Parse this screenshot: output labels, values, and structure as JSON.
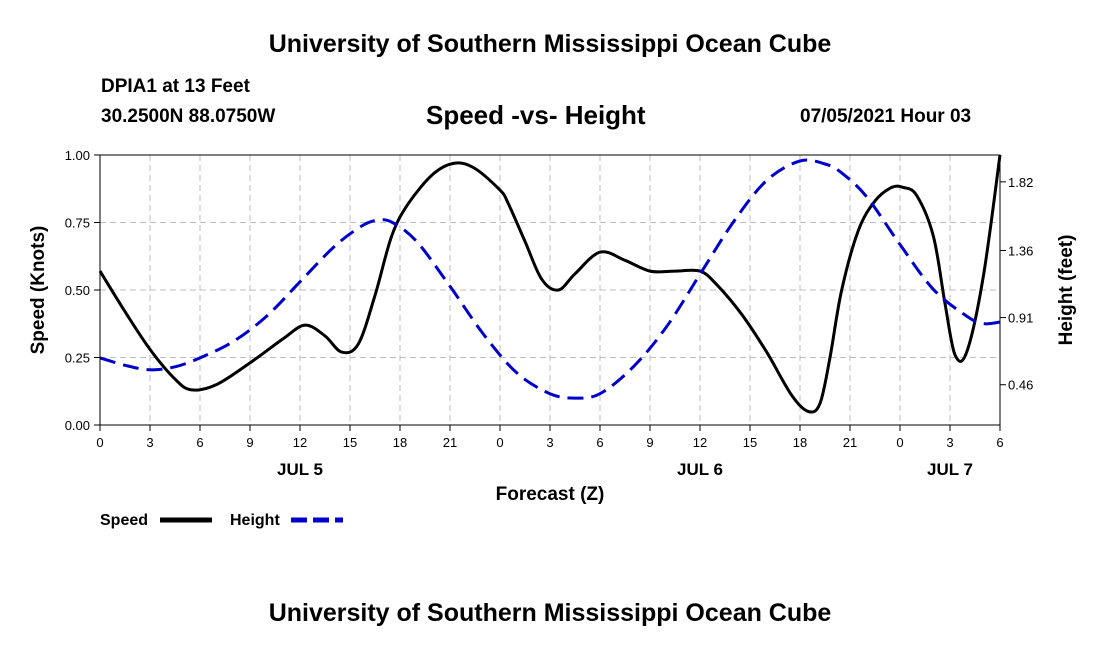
{
  "page": {
    "title_top": "University of Southern Mississippi Ocean Cube",
    "title_bottom": "University of Southern Mississippi Ocean Cube",
    "station": "DPIA1 at 13 Feet",
    "coordinates": "30.2500N  88.0750W",
    "subtitle": "Speed -vs- Height",
    "datetime": "07/05/2021 Hour 03"
  },
  "chart_data": {
    "type": "line",
    "title": "Speed -vs- Height",
    "xlabel": "Forecast (Z)",
    "ylabel": "Speed (Knots)",
    "y2label": "Height (feet)",
    "xlim": [
      0,
      54
    ],
    "ylim": [
      0,
      1
    ],
    "y2lim": [
      0.19,
      2.0
    ],
    "grid": true,
    "x_ticks": [
      0,
      3,
      6,
      9,
      12,
      15,
      18,
      21,
      24,
      27,
      30,
      33,
      36,
      39,
      42,
      45,
      48,
      51,
      54
    ],
    "x_tick_labels": [
      "0",
      "3",
      "6",
      "9",
      "12",
      "15",
      "18",
      "21",
      "0",
      "3",
      "6",
      "9",
      "12",
      "15",
      "18",
      "21",
      "0",
      "3",
      "6"
    ],
    "y_ticks": [
      0,
      0.25,
      0.5,
      0.75,
      1.0
    ],
    "y_tick_labels": [
      "0.00",
      "0.25",
      "0.50",
      "0.75",
      "1.00"
    ],
    "y2_ticks": [
      0.46,
      0.91,
      1.36,
      1.82
    ],
    "y2_tick_labels": [
      "0.46",
      "0.91",
      "1.36",
      "1.82"
    ],
    "date_labels": [
      {
        "label": "JUL 5",
        "x": 12
      },
      {
        "label": "JUL 6",
        "x": 36
      },
      {
        "label": "JUL 7",
        "x": 51
      }
    ],
    "legend_position": "bottom-left",
    "series": [
      {
        "name": "Speed",
        "axis": "left",
        "color": "#000000",
        "dash": "solid",
        "x": [
          0,
          1.5,
          3,
          4.5,
          5.5,
          7,
          9,
          11,
          12.3,
          13.5,
          14.5,
          15.5,
          16.5,
          17.5,
          18.5,
          20,
          21.3,
          22.5,
          24,
          24.5,
          25.5,
          26.5,
          27.5,
          28.5,
          30,
          31.5,
          33,
          34.5,
          36,
          37,
          38.5,
          40,
          41.5,
          42.5,
          43.2,
          43.8,
          44.5,
          45.5,
          46.5,
          47.5,
          48.2,
          49,
          50,
          50.7,
          51.3,
          52,
          53,
          54
        ],
        "values": [
          0.57,
          0.42,
          0.28,
          0.17,
          0.13,
          0.15,
          0.23,
          0.32,
          0.37,
          0.33,
          0.27,
          0.3,
          0.48,
          0.7,
          0.82,
          0.93,
          0.97,
          0.95,
          0.87,
          0.82,
          0.68,
          0.54,
          0.5,
          0.56,
          0.64,
          0.61,
          0.57,
          0.57,
          0.57,
          0.52,
          0.41,
          0.27,
          0.11,
          0.05,
          0.08,
          0.25,
          0.5,
          0.72,
          0.83,
          0.88,
          0.88,
          0.85,
          0.7,
          0.45,
          0.26,
          0.27,
          0.55,
          1.0
        ]
      },
      {
        "name": "Height",
        "axis": "right",
        "color": "#0000cc",
        "dash": "dashed",
        "x": [
          0,
          1.5,
          3,
          4.5,
          6,
          8,
          10,
          12,
          14,
          15.5,
          16.5,
          17.5,
          19,
          21,
          23,
          25,
          27,
          28.5,
          30,
          32,
          34,
          36,
          38,
          40,
          42,
          43.5,
          44.5,
          46,
          48,
          50,
          52,
          53,
          54
        ],
        "values": [
          0.64,
          0.59,
          0.56,
          0.58,
          0.64,
          0.75,
          0.92,
          1.15,
          1.38,
          1.51,
          1.56,
          1.55,
          1.42,
          1.12,
          0.8,
          0.54,
          0.4,
          0.37,
          0.4,
          0.58,
          0.85,
          1.2,
          1.55,
          1.83,
          1.96,
          1.94,
          1.88,
          1.72,
          1.4,
          1.1,
          0.92,
          0.87,
          0.88
        ]
      }
    ]
  }
}
